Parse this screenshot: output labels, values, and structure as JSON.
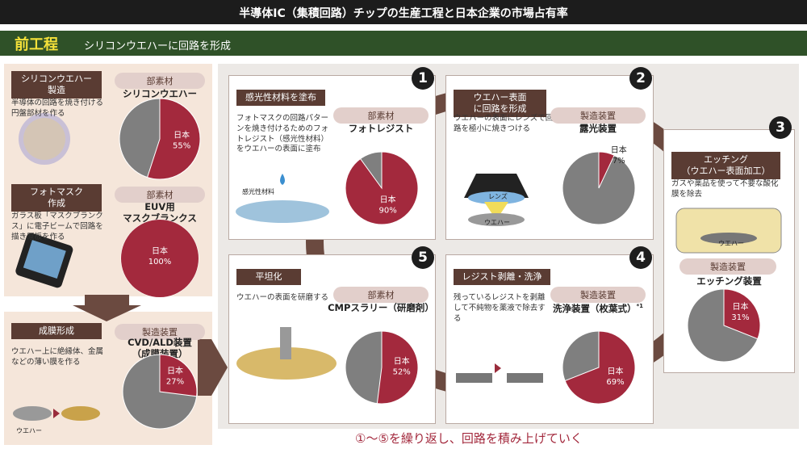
{
  "title": "半導体IC（集積回路）チップの生産工程と日本企業の市場占有率",
  "section": {
    "label": "前工程",
    "caption": "シリコンウエハーに回路を形成"
  },
  "materials": [
    {
      "heading": "シリコンウエハー\n製造",
      "description": "半導体の回路を焼き付ける円盤部材を作る",
      "kind": "部素材",
      "product": "シリコンウエハー",
      "pie": {
        "label": "日本",
        "value": 55,
        "value_label": "55%"
      }
    },
    {
      "heading": "フォトマスク\n作成",
      "description": "ガラス板「マスクブランクス」に電子ビームで回路を描き原板を作る",
      "kind": "部素材",
      "product": "EUV用\nマスクブランクス",
      "pie": {
        "label": "日本",
        "value": 100,
        "value_label": "100%"
      }
    },
    {
      "heading": "成膜形成",
      "description": "ウエハー上に絶縁体、金属などの薄い膜を作る",
      "kind": "製造装置",
      "product": "CVD/ALD装置\n（成膜装置）",
      "image_label": "ウエハー",
      "pie": {
        "label": "日本",
        "value": 27,
        "value_label": "27%"
      }
    }
  ],
  "steps": [
    {
      "number": 1,
      "heading": "感光性材料を塗布",
      "description": "フォトマスクの回路パターンを焼き付けるためのフォトレジスト（感光性材料）をウエハーの表面に塗布",
      "kind": "部素材",
      "product": "フォトレジスト",
      "image_label": "感光性材料",
      "pie": {
        "label": "日本",
        "value": 90,
        "value_label": "90%"
      }
    },
    {
      "number": 2,
      "heading": "ウエハー表面\nに回路を形成",
      "description": "ウエハーの表面にレンズで回路を極小に焼きつける",
      "kind": "製造装置",
      "product": "露光装置",
      "image_labels": [
        "レンズ",
        "ウエハー"
      ],
      "pie": {
        "label": "日本",
        "value": 7,
        "value_label": "7%"
      }
    },
    {
      "number": 3,
      "heading": "エッチング\n（ウエハー表面加工）",
      "description": "ガスや薬品を使って不要な酸化膜を除去",
      "kind": "製造装置",
      "product": "エッチング装置",
      "image_label": "ウエハー",
      "pie": {
        "label": "日本",
        "value": 31,
        "value_label": "31%"
      }
    },
    {
      "number": 4,
      "heading": "レジスト剥離・洗浄",
      "description": "残っているレジストを剥離して不純物を薬液で除去する",
      "kind": "製造装置",
      "product": "洗浄装置（枚葉式）",
      "note": "*1",
      "pie": {
        "label": "日本",
        "value": 69,
        "value_label": "69%"
      }
    },
    {
      "number": 5,
      "heading": "平坦化",
      "description": "ウエハーの表面を研磨する",
      "kind": "部素材",
      "product": "CMPスラリー（研磨剤）",
      "pie": {
        "label": "日本",
        "value": 52,
        "value_label": "52%"
      }
    }
  ],
  "footer": "①〜⑤を繰り返し、回路を積み上げていく"
}
